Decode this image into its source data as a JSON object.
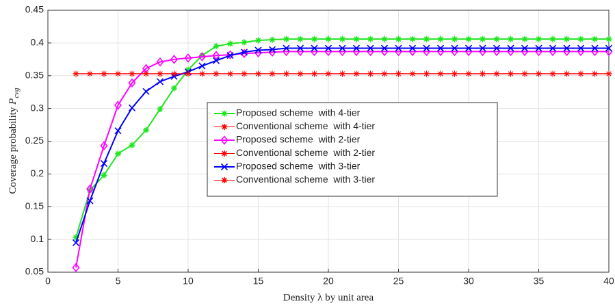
{
  "chart_data": {
    "type": "line",
    "xlabel": "Density λ by unit area",
    "ylabel": "Coverage probability",
    "ylabel_symbol": "P",
    "ylabel_subscript": "cvg",
    "x": [
      2,
      3,
      4,
      5,
      6,
      7,
      8,
      9,
      10,
      11,
      12,
      13,
      14,
      15,
      16,
      17,
      18,
      19,
      20,
      21,
      22,
      23,
      24,
      25,
      26,
      27,
      28,
      29,
      30,
      31,
      32,
      33,
      34,
      35,
      36,
      37,
      38,
      39,
      40
    ],
    "series": [
      {
        "name": "Proposed scheme  with 4-tier",
        "color": "#1ee61e",
        "marker": "star",
        "values": [
          0.103,
          0.175,
          0.198,
          0.231,
          0.244,
          0.267,
          0.299,
          0.331,
          0.359,
          0.381,
          0.395,
          0.399,
          0.401,
          0.404,
          0.405,
          0.406,
          0.406,
          0.406,
          0.406,
          0.406,
          0.406,
          0.406,
          0.406,
          0.406,
          0.406,
          0.406,
          0.406,
          0.406,
          0.406,
          0.406,
          0.406,
          0.406,
          0.406,
          0.406,
          0.406,
          0.406,
          0.406,
          0.406,
          0.406
        ]
      },
      {
        "name": "Conventional scheme  with 4-tier",
        "color": "#ff0000",
        "marker": "asterisk",
        "values": [
          0.353,
          0.353,
          0.353,
          0.353,
          0.353,
          0.353,
          0.353,
          0.353,
          0.353,
          0.353,
          0.353,
          0.353,
          0.353,
          0.353,
          0.353,
          0.353,
          0.353,
          0.353,
          0.353,
          0.353,
          0.353,
          0.353,
          0.353,
          0.353,
          0.353,
          0.353,
          0.353,
          0.353,
          0.353,
          0.353,
          0.353,
          0.353,
          0.353,
          0.353,
          0.353,
          0.353,
          0.353,
          0.353,
          0.353
        ]
      },
      {
        "name": "Proposed scheme  with 2-tier",
        "color": "#ff00ff",
        "marker": "diamond",
        "values": [
          0.057,
          0.177,
          0.243,
          0.305,
          0.339,
          0.361,
          0.371,
          0.375,
          0.377,
          0.379,
          0.381,
          0.382,
          0.384,
          0.385,
          0.386,
          0.387,
          0.387,
          0.387,
          0.387,
          0.387,
          0.387,
          0.387,
          0.387,
          0.387,
          0.387,
          0.387,
          0.387,
          0.387,
          0.387,
          0.387,
          0.387,
          0.387,
          0.387,
          0.387,
          0.387,
          0.387,
          0.387,
          0.387,
          0.387
        ]
      },
      {
        "name": "Conventional scheme  with 2-tier",
        "color": "#ff0000",
        "marker": "asterisk",
        "values": [
          0.353,
          0.353,
          0.353,
          0.353,
          0.353,
          0.353,
          0.353,
          0.353,
          0.353,
          0.353,
          0.353,
          0.353,
          0.353,
          0.353,
          0.353,
          0.353,
          0.353,
          0.353,
          0.353,
          0.353,
          0.353,
          0.353,
          0.353,
          0.353,
          0.353,
          0.353,
          0.353,
          0.353,
          0.353,
          0.353,
          0.353,
          0.353,
          0.353,
          0.353,
          0.353,
          0.353,
          0.353,
          0.353,
          0.353
        ]
      },
      {
        "name": "Proposed scheme  with 3-tier",
        "color": "#0000ff",
        "marker": "x",
        "values": [
          0.095,
          0.159,
          0.216,
          0.266,
          0.301,
          0.326,
          0.341,
          0.349,
          0.356,
          0.365,
          0.373,
          0.381,
          0.386,
          0.389,
          0.39,
          0.392,
          0.392,
          0.392,
          0.392,
          0.392,
          0.392,
          0.392,
          0.392,
          0.392,
          0.392,
          0.392,
          0.392,
          0.392,
          0.392,
          0.392,
          0.392,
          0.392,
          0.392,
          0.392,
          0.392,
          0.392,
          0.392,
          0.392,
          0.392
        ]
      },
      {
        "name": "Conventional scheme  with 3-tier",
        "color": "#ff0000",
        "marker": "asterisk",
        "values": [
          0.353,
          0.353,
          0.353,
          0.353,
          0.353,
          0.353,
          0.353,
          0.353,
          0.353,
          0.353,
          0.353,
          0.353,
          0.353,
          0.353,
          0.353,
          0.353,
          0.353,
          0.353,
          0.353,
          0.353,
          0.353,
          0.353,
          0.353,
          0.353,
          0.353,
          0.353,
          0.353,
          0.353,
          0.353,
          0.353,
          0.353,
          0.353,
          0.353,
          0.353,
          0.353,
          0.353,
          0.353,
          0.353,
          0.353
        ]
      }
    ],
    "xlim": [
      0,
      40
    ],
    "xticks": [
      0,
      5,
      10,
      15,
      20,
      25,
      30,
      35,
      40
    ],
    "ylim": [
      0.05,
      0.45
    ],
    "yticks": [
      0.05,
      0.1,
      0.15,
      0.2,
      0.25,
      0.3,
      0.35,
      0.4,
      0.45
    ],
    "grid": true
  }
}
